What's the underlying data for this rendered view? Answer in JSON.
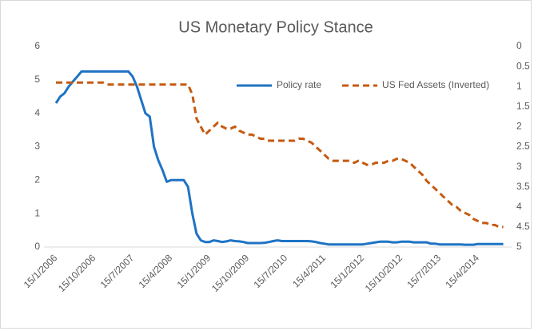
{
  "chart_data": {
    "type": "line",
    "title": "US Monetary Policy Stance",
    "categories": [
      "15/1/2006",
      null,
      null,
      null,
      null,
      null,
      null,
      null,
      null,
      "15/10/2006",
      null,
      null,
      null,
      null,
      null,
      null,
      null,
      null,
      "15/7/2007",
      null,
      null,
      null,
      null,
      null,
      null,
      null,
      null,
      "15/4/2008",
      null,
      null,
      null,
      null,
      null,
      null,
      null,
      null,
      "15/1/2009",
      null,
      null,
      null,
      null,
      null,
      null,
      null,
      null,
      "15/10/2009",
      null,
      null,
      null,
      null,
      null,
      null,
      null,
      null,
      "15/7/2010",
      null,
      null,
      null,
      null,
      null,
      null,
      null,
      null,
      "15/4/2011",
      null,
      null,
      null,
      null,
      null,
      null,
      null,
      null,
      "15/1/2012",
      null,
      null,
      null,
      null,
      null,
      null,
      null,
      null,
      "15/10/2012",
      null,
      null,
      null,
      null,
      null,
      null,
      null,
      null,
      "15/7/2013",
      null,
      null,
      null,
      null,
      null,
      null,
      null,
      null,
      "15/4/2014",
      null,
      null,
      null,
      null,
      null,
      null
    ],
    "series": [
      {
        "name": "Policy rate",
        "color": "#1f73c4",
        "line_style": "solid",
        "values": [
          4.3,
          4.5,
          4.6,
          4.8,
          4.95,
          5.1,
          5.25,
          5.25,
          5.25,
          5.25,
          5.25,
          5.25,
          5.25,
          5.25,
          5.25,
          5.25,
          5.25,
          5.25,
          5.1,
          4.8,
          4.4,
          4.0,
          3.9,
          3.0,
          2.6,
          2.3,
          1.95,
          2.0,
          2.0,
          2.0,
          2.0,
          1.8,
          1.0,
          0.4,
          0.2,
          0.15,
          0.15,
          0.2,
          0.18,
          0.15,
          0.17,
          0.2,
          0.18,
          0.17,
          0.15,
          0.12,
          0.12,
          0.12,
          0.12,
          0.13,
          0.15,
          0.18,
          0.2,
          0.18,
          0.18,
          0.18,
          0.18,
          0.18,
          0.18,
          0.18,
          0.17,
          0.15,
          0.12,
          0.1,
          0.08,
          0.08,
          0.08,
          0.08,
          0.08,
          0.08,
          0.08,
          0.08,
          0.08,
          0.1,
          0.12,
          0.14,
          0.16,
          0.16,
          0.16,
          0.14,
          0.14,
          0.16,
          0.16,
          0.16,
          0.14,
          0.14,
          0.14,
          0.14,
          0.1,
          0.1,
          0.08,
          0.08,
          0.08,
          0.08,
          0.08,
          0.08,
          0.07,
          0.07,
          0.07,
          0.09,
          0.09,
          0.09,
          0.09,
          0.09,
          0.09,
          0.09
        ]
      },
      {
        "name": "US Fed Assets (Inverted)",
        "color": "#c55a11",
        "line_style": "dashed",
        "axis": "y2",
        "values": [
          0.9,
          0.9,
          0.9,
          0.9,
          0.9,
          0.9,
          0.9,
          0.9,
          0.9,
          0.9,
          0.9,
          0.9,
          0.95,
          0.95,
          0.95,
          0.95,
          0.95,
          0.95,
          0.95,
          0.95,
          0.95,
          0.95,
          0.95,
          0.95,
          0.95,
          0.95,
          0.95,
          0.95,
          0.95,
          0.95,
          0.95,
          0.95,
          1.2,
          1.8,
          2.0,
          2.2,
          2.1,
          2.0,
          1.9,
          2.0,
          2.05,
          2.05,
          2.0,
          2.1,
          2.15,
          2.2,
          2.2,
          2.25,
          2.3,
          2.3,
          2.35,
          2.35,
          2.35,
          2.35,
          2.35,
          2.35,
          2.35,
          2.3,
          2.3,
          2.35,
          2.4,
          2.5,
          2.6,
          2.7,
          2.8,
          2.85,
          2.85,
          2.85,
          2.85,
          2.85,
          2.9,
          2.85,
          2.9,
          2.95,
          2.95,
          2.9,
          2.9,
          2.9,
          2.85,
          2.85,
          2.8,
          2.8,
          2.85,
          2.9,
          3.0,
          3.1,
          3.2,
          3.35,
          3.45,
          3.55,
          3.65,
          3.75,
          3.85,
          3.95,
          4.0,
          4.1,
          4.15,
          4.2,
          4.3,
          4.35,
          4.4,
          4.4,
          4.45,
          4.45,
          4.5,
          4.5
        ]
      }
    ],
    "ylim": [
      0,
      6
    ],
    "yticks": [
      0,
      1,
      2,
      3,
      4,
      5,
      6
    ],
    "y2lim": [
      0,
      5
    ],
    "y2ticks": [
      0,
      0.5,
      1,
      1.5,
      2,
      2.5,
      3,
      3.5,
      4,
      4.5,
      5
    ],
    "y2_inverted": true,
    "grid": false,
    "legend": "top-right"
  }
}
